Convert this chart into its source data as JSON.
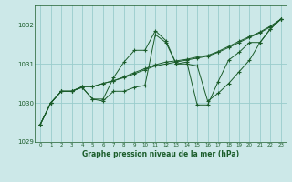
{
  "title": "Graphe pression niveau de la mer (hPa)",
  "bg_color": "#cce8e8",
  "grid_color": "#99cccc",
  "line_color": "#1a5c2a",
  "marker_color": "#1a5c2a",
  "x_values": [
    0,
    1,
    2,
    3,
    4,
    5,
    6,
    7,
    8,
    9,
    10,
    11,
    12,
    13,
    14,
    15,
    16,
    17,
    18,
    19,
    20,
    21,
    22,
    23
  ],
  "series_wavy": [
    1029.45,
    1030.0,
    1030.3,
    1030.3,
    1030.4,
    1030.1,
    1030.05,
    1030.3,
    1030.3,
    1030.4,
    1030.45,
    1031.75,
    1031.55,
    1031.0,
    1031.0,
    1030.95,
    1030.05,
    1030.25,
    1030.5,
    1030.8,
    1031.1,
    1031.55,
    1031.9,
    1032.15
  ],
  "series_peak": [
    1029.45,
    1030.0,
    1030.3,
    1030.3,
    1030.4,
    1030.1,
    1030.1,
    1030.65,
    1031.05,
    1031.35,
    1031.35,
    1031.85,
    1031.6,
    1031.0,
    1031.05,
    1029.95,
    1029.95,
    1030.55,
    1031.1,
    1031.3,
    1031.55,
    1031.55,
    1031.9,
    1032.15
  ],
  "series_line1": [
    1029.45,
    1030.0,
    1030.3,
    1030.3,
    1030.42,
    1030.42,
    1030.5,
    1030.57,
    1030.65,
    1030.75,
    1030.85,
    1030.95,
    1031.0,
    1031.05,
    1031.1,
    1031.15,
    1031.2,
    1031.3,
    1031.42,
    1031.55,
    1031.68,
    1031.8,
    1031.95,
    1032.15
  ],
  "series_line2": [
    1029.45,
    1030.0,
    1030.3,
    1030.3,
    1030.42,
    1030.42,
    1030.5,
    1030.57,
    1030.67,
    1030.78,
    1030.88,
    1030.98,
    1031.05,
    1031.08,
    1031.12,
    1031.18,
    1031.22,
    1031.32,
    1031.45,
    1031.58,
    1031.7,
    1031.82,
    1031.97,
    1032.15
  ],
  "ylim": [
    1029.0,
    1032.5
  ],
  "yticks": [
    1029,
    1030,
    1031,
    1032
  ],
  "xlim": [
    -0.5,
    23.5
  ],
  "xticks": [
    0,
    1,
    2,
    3,
    4,
    5,
    6,
    7,
    8,
    9,
    10,
    11,
    12,
    13,
    14,
    15,
    16,
    17,
    18,
    19,
    20,
    21,
    22,
    23
  ]
}
